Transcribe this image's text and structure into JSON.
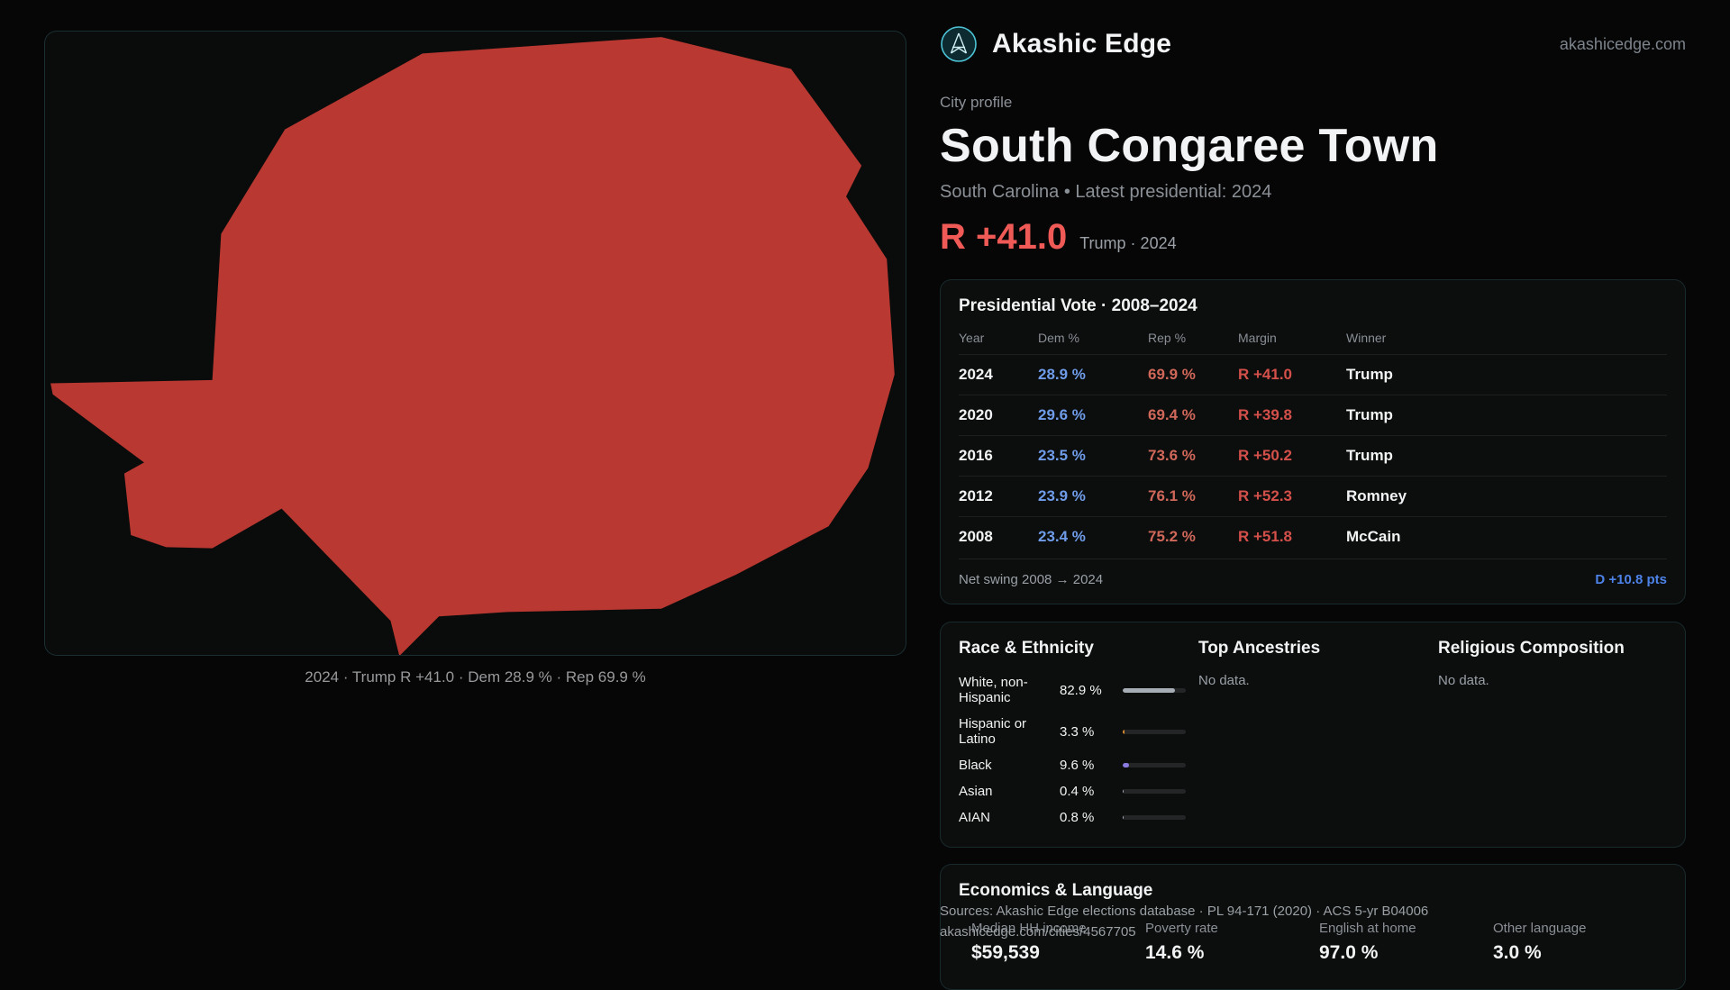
{
  "header": {
    "brand": "Akashic Edge",
    "site": "akashicedge.com"
  },
  "profile": {
    "kicker": "City profile",
    "title": "South Congaree Town",
    "subtitle": "South Carolina • Latest presidential: 2024",
    "margin_big": "R +41.0",
    "margin_caption": "Trump · 2024"
  },
  "map": {
    "caption": "2024 · Trump R +41.0 · Dem 28.9 % · Rep 69.9 %",
    "fill": "#b93831"
  },
  "vote_table": {
    "title": "Presidential Vote · 2008–2024",
    "columns": [
      "Year",
      "Dem %",
      "Rep %",
      "Margin",
      "Winner"
    ],
    "rows": [
      {
        "year": "2024",
        "dem": "28.9 %",
        "rep": "69.9 %",
        "margin": "R +41.0",
        "winner": "Trump"
      },
      {
        "year": "2020",
        "dem": "29.6 %",
        "rep": "69.4 %",
        "margin": "R +39.8",
        "winner": "Trump"
      },
      {
        "year": "2016",
        "dem": "23.5 %",
        "rep": "73.6 %",
        "margin": "R +50.2",
        "winner": "Trump"
      },
      {
        "year": "2012",
        "dem": "23.9 %",
        "rep": "76.1 %",
        "margin": "R +52.3",
        "winner": "Romney"
      },
      {
        "year": "2008",
        "dem": "23.4 %",
        "rep": "75.2 %",
        "margin": "R +51.8",
        "winner": "McCain"
      }
    ],
    "footer_label": "Net swing 2008 → 2024",
    "footer_value": "D +10.8 pts"
  },
  "demographics": {
    "race_title": "Race & Ethnicity",
    "races": [
      {
        "label": "White, non-Hispanic",
        "value": "82.9 %",
        "pct": 82.9,
        "color": "#a7adb5"
      },
      {
        "label": "Hispanic or Latino",
        "value": "3.3 %",
        "pct": 3.3,
        "color": "#d98c2b"
      },
      {
        "label": "Black",
        "value": "9.6 %",
        "pct": 9.6,
        "color": "#8b7ae0"
      },
      {
        "label": "Asian",
        "value": "0.4 %",
        "pct": 0.4,
        "color": "#a7adb5"
      },
      {
        "label": "AIAN",
        "value": "0.8 %",
        "pct": 0.8,
        "color": "#a7adb5"
      }
    ],
    "ancestries_title": "Top Ancestries",
    "ancestries_empty": "No data.",
    "religion_title": "Religious Composition",
    "religion_empty": "No data."
  },
  "economics": {
    "title": "Economics & Language",
    "stats": [
      {
        "label": "Median HH income",
        "value": "$59,539"
      },
      {
        "label": "Poverty rate",
        "value": "14.6 %"
      },
      {
        "label": "English at home",
        "value": "97.0 %"
      },
      {
        "label": "Other language",
        "value": "3.0 %"
      }
    ]
  },
  "footer": {
    "sources": "Sources: Akashic Edge elections database · PL 94-171 (2020) · ACS 5-yr B04006",
    "permalink": "akashicedge.com/cities/4567705"
  }
}
